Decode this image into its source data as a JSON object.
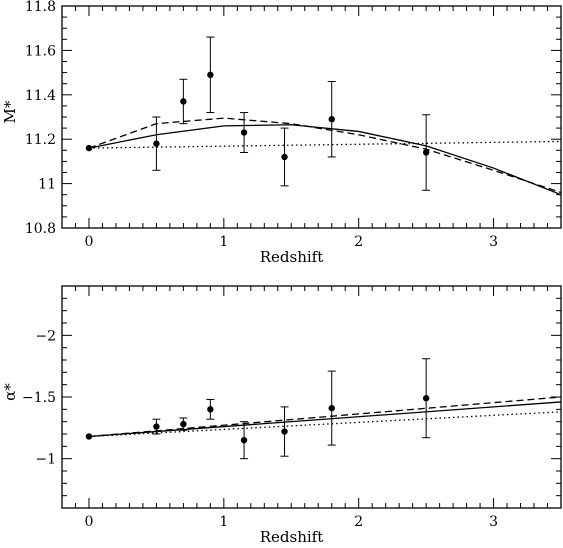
{
  "chart_data": [
    {
      "type": "scatter",
      "title": "",
      "xlabel": "Redshift",
      "ylabel": "M*",
      "xlim": [
        -0.2,
        3.5
      ],
      "ylim": [
        10.8,
        11.8
      ],
      "xticks": [
        0,
        1,
        2,
        3
      ],
      "xtick_labels": [
        "0",
        "1",
        "2",
        "3"
      ],
      "yticks": [
        10.8,
        11,
        11.2,
        11.4,
        11.6,
        11.8
      ],
      "ytick_labels": [
        "10.8",
        "11",
        "11.2",
        "11.4",
        "11.6",
        "11.8"
      ],
      "y_inverted": false,
      "points": [
        {
          "x": 0.0,
          "y": 11.16,
          "err": 0.0
        },
        {
          "x": 0.5,
          "y": 11.18,
          "err": 0.12
        },
        {
          "x": 0.7,
          "y": 11.37,
          "err": 0.1
        },
        {
          "x": 0.9,
          "y": 11.49,
          "err": 0.17
        },
        {
          "x": 1.15,
          "y": 11.23,
          "err": 0.09
        },
        {
          "x": 1.45,
          "y": 11.12,
          "err": 0.13
        },
        {
          "x": 1.8,
          "y": 11.29,
          "err": 0.17
        },
        {
          "x": 2.5,
          "y": 11.14,
          "err": 0.17
        }
      ],
      "lines": [
        {
          "style": "solid",
          "x": [
            0,
            0.5,
            1.0,
            1.5,
            2.0,
            2.5,
            3.0,
            3.5
          ],
          "y": [
            11.16,
            11.22,
            11.26,
            11.265,
            11.235,
            11.17,
            11.07,
            10.95
          ]
        },
        {
          "style": "dashed",
          "x": [
            0,
            0.5,
            1.0,
            1.5,
            2.0,
            2.5,
            3.0,
            3.5
          ],
          "y": [
            11.16,
            11.27,
            11.295,
            11.27,
            11.22,
            11.155,
            11.06,
            10.96
          ]
        },
        {
          "style": "dotted",
          "x": [
            0,
            3.5
          ],
          "y": [
            11.16,
            11.19
          ]
        }
      ]
    },
    {
      "type": "scatter",
      "title": "",
      "xlabel": "Redshift",
      "ylabel": "α*",
      "xlim": [
        -0.2,
        3.5
      ],
      "ylim": [
        -0.6,
        -2.4
      ],
      "xticks": [
        0,
        1,
        2,
        3
      ],
      "xtick_labels": [
        "0",
        "1",
        "2",
        "3"
      ],
      "yticks": [
        -1,
        -1.5,
        -2
      ],
      "ytick_labels": [
        "−1",
        "−1.5",
        "−2"
      ],
      "y_inverted": true,
      "points": [
        {
          "x": 0.0,
          "y": -1.18,
          "err": 0.0
        },
        {
          "x": 0.5,
          "y": -1.26,
          "err": 0.06
        },
        {
          "x": 0.7,
          "y": -1.28,
          "err": 0.05
        },
        {
          "x": 0.9,
          "y": -1.4,
          "err": 0.08
        },
        {
          "x": 1.15,
          "y": -1.15,
          "err": 0.15
        },
        {
          "x": 1.45,
          "y": -1.22,
          "err": 0.2
        },
        {
          "x": 1.8,
          "y": -1.41,
          "err": 0.3
        },
        {
          "x": 2.5,
          "y": -1.49,
          "err": 0.32
        }
      ],
      "lines": [
        {
          "style": "solid",
          "x": [
            0,
            3.5
          ],
          "y": [
            -1.18,
            -1.46
          ]
        },
        {
          "style": "dashed",
          "x": [
            0,
            3.5
          ],
          "y": [
            -1.18,
            -1.5
          ]
        },
        {
          "style": "dotted",
          "x": [
            0,
            3.5
          ],
          "y": [
            -1.18,
            -1.38
          ]
        }
      ]
    }
  ]
}
